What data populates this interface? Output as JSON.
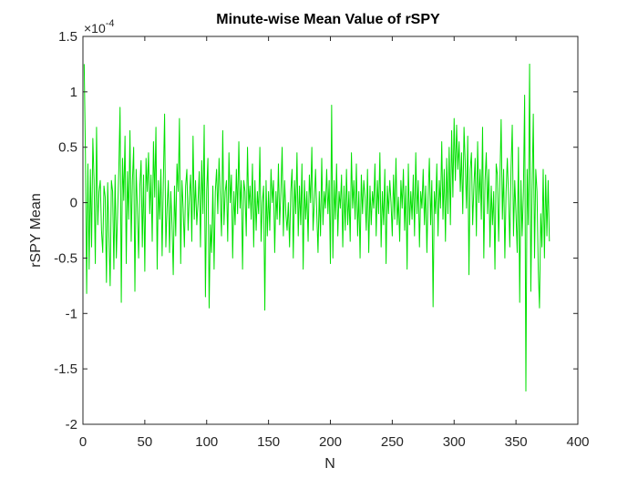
{
  "chart_data": {
    "type": "line",
    "title": "Minute-wise Mean Value of rSPY",
    "xlabel": "N",
    "ylabel": "rSPY Mean",
    "y_exponent_label": "×10",
    "y_exponent_power": "-4",
    "xlim": [
      0,
      400
    ],
    "ylim": [
      -2,
      1.5
    ],
    "x_ticks": [
      0,
      50,
      100,
      150,
      200,
      250,
      300,
      350,
      400
    ],
    "y_ticks": [
      -2,
      -1.5,
      -1,
      -0.5,
      0,
      0.5,
      1,
      1.5
    ],
    "x_tick_labels": [
      "0",
      "50",
      "100",
      "150",
      "200",
      "250",
      "300",
      "350",
      "400"
    ],
    "y_tick_labels": [
      "-2",
      "-1.5",
      "-1",
      "-0.5",
      "0",
      "0.5",
      "1",
      "1.5"
    ],
    "grid": false,
    "series": [
      {
        "color": "#00e000",
        "x_start": 1,
        "x_step": 1,
        "values": [
          1.25,
          0.45,
          -0.82,
          0.35,
          -0.6,
          0.3,
          -0.4,
          0.58,
          0.2,
          -0.55,
          0.68,
          -0.2,
          0.1,
          0.2,
          -0.25,
          -0.45,
          0.15,
          0.05,
          -0.72,
          0.18,
          -0.3,
          -0.75,
          0.2,
          0.1,
          -0.6,
          0.25,
          -0.5,
          -0.1,
          0.3,
          0.86,
          -0.9,
          0.4,
          0.02,
          0.6,
          -0.55,
          0.28,
          -0.15,
          0.65,
          -0.35,
          0.2,
          0.5,
          -0.8,
          0.3,
          -0.05,
          -0.5,
          0.15,
          0.38,
          -0.4,
          0.25,
          -0.62,
          0.4,
          0.1,
          0.45,
          -0.1,
          0.25,
          -0.35,
          0.55,
          0.05,
          0.68,
          -0.6,
          0.2,
          -0.15,
          0.3,
          -0.48,
          0.2,
          0.8,
          -0.4,
          -0.05,
          0.2,
          -0.45,
          0.1,
          -0.2,
          -0.65,
          0.15,
          -0.3,
          0.35,
          0.1,
          0.76,
          -0.55,
          0.2,
          -0.05,
          -0.4,
          0.15,
          0.3,
          -0.25,
          0.05,
          0.25,
          -0.35,
          0.6,
          -0.15,
          0.2,
          -0.2,
          0.0,
          0.28,
          -0.4,
          0.38,
          -0.1,
          0.7,
          -0.85,
          0.1,
          0.4,
          -0.95,
          -0.2,
          -0.45,
          0.15,
          -0.6,
          0.1,
          0.3,
          -0.1,
          0.4,
          0.05,
          -0.3,
          0.65,
          -0.2,
          0.1,
          0.2,
          -0.35,
          0.45,
          0.0,
          0.25,
          -0.5,
          0.1,
          -0.2,
          0.3,
          -0.1,
          0.55,
          -0.05,
          0.2,
          -0.6,
          0.2,
          0.1,
          -0.3,
          0.5,
          -0.05,
          0.15,
          -0.15,
          0.35,
          -0.4,
          0.2,
          -0.25,
          0.1,
          -0.1,
          0.5,
          -0.35,
          0.0,
          0.15,
          -0.97,
          0.2,
          -0.3,
          0.1,
          -0.25,
          0.3,
          0.0,
          0.2,
          -0.45,
          0.1,
          -0.15,
          0.35,
          -0.2,
          0.1,
          0.5,
          -0.3,
          0.2,
          -0.1,
          -0.25,
          0.0,
          -0.4,
          0.1,
          0.3,
          -0.5,
          0.2,
          -0.1,
          0.45,
          -0.3,
          0.15,
          -0.2,
          0.35,
          -0.6,
          0.2,
          -0.15,
          0.1,
          -0.35,
          0.25,
          0.0,
          0.5,
          -0.25,
          0.0,
          0.3,
          -0.1,
          -0.45,
          0.1,
          -0.3,
          0.4,
          -0.2,
          0.1,
          -0.05,
          0.3,
          -0.1,
          0.2,
          -0.55,
          0.88,
          -0.5,
          0.2,
          -0.15,
          0.35,
          -0.3,
          0.1,
          -0.05,
          0.25,
          -0.4,
          0.15,
          -0.25,
          0.3,
          -0.2,
          0.1,
          -0.35,
          0.45,
          -0.05,
          0.2,
          -0.15,
          0.35,
          -0.3,
          0.1,
          -0.5,
          0.25,
          -0.1,
          0.2,
          0.05,
          -0.25,
          0.3,
          -0.45,
          0.15,
          -0.2,
          0.1,
          -0.05,
          0.35,
          -0.3,
          0.2,
          -0.1,
          0.45,
          -0.4,
          0.1,
          -0.2,
          0.3,
          -0.55,
          0.15,
          -0.1,
          0.2,
          0.0,
          -0.3,
          0.25,
          -0.15,
          0.4,
          -0.2,
          0.05,
          -0.35,
          0.2,
          -0.05,
          0.3,
          -0.25,
          0.15,
          -0.6,
          0.35,
          -0.2,
          0.1,
          -0.15,
          0.25,
          -0.3,
          0.45,
          -0.1,
          0.2,
          -0.4,
          0.1,
          -0.05,
          0.3,
          -0.2,
          0.15,
          -0.45,
          0.05,
          0.4,
          -0.2,
          0.2,
          -0.94,
          0.1,
          -0.1,
          0.35,
          -0.3,
          0.2,
          -0.05,
          0.55,
          -0.15,
          0.3,
          -0.35,
          0.4,
          -0.1,
          0.5,
          -0.2,
          0.65,
          0.05,
          0.76,
          0.2,
          0.7,
          0.3,
          0.55,
          0.1,
          0.45,
          -0.1,
          0.68,
          0.35,
          -0.05,
          0.6,
          -0.65,
          0.3,
          0.45,
          -0.2,
          0.15,
          0.4,
          -0.3,
          0.55,
          0.0,
          0.3,
          -0.15,
          0.68,
          -0.5,
          0.2,
          0.45,
          -0.1,
          0.3,
          -0.4,
          0.15,
          -0.2,
          0.1,
          -0.6,
          0.35,
          0.25,
          -0.35,
          0.2,
          0.75,
          -0.15,
          0.3,
          -0.5,
          0.1,
          0.4,
          0.05,
          -0.4,
          0.3,
          0.7,
          -0.3,
          0.2,
          -0.1,
          -0.45,
          0.5,
          -0.9,
          0.2,
          -0.3,
          0.1,
          0.97,
          -1.7,
          0.3,
          -0.2,
          1.25,
          -0.8,
          0.1,
          0.8,
          -0.5,
          0.3,
          0.1,
          -0.6,
          -0.95,
          -0.1,
          -0.4,
          0.3,
          -0.5,
          0.25,
          -0.3,
          0.2,
          -0.35
        ]
      }
    ]
  }
}
